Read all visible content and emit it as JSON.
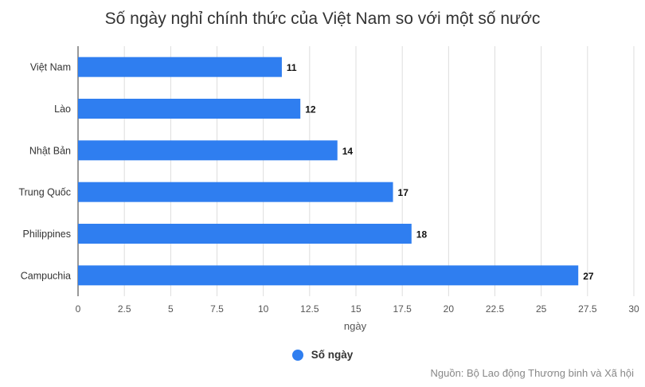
{
  "chart_data": {
    "type": "bar",
    "orientation": "horizontal",
    "title": "Số ngày nghỉ chính thức của Việt Nam so với một số nước",
    "categories": [
      "Việt Nam",
      "Lào",
      "Nhật Bản",
      "Trung Quốc",
      "Philippines",
      "Campuchia"
    ],
    "series": [
      {
        "name": "Số ngày",
        "values": [
          11,
          12,
          14,
          17,
          18,
          27
        ],
        "color": "#2f7ef0"
      }
    ],
    "xlabel": "ngày",
    "ylabel": "",
    "xlim": [
      0,
      30
    ],
    "xticks": [
      0,
      2.5,
      5,
      7.5,
      10,
      12.5,
      15,
      17.5,
      20,
      22.5,
      25,
      27.5,
      30
    ],
    "xtick_labels": [
      "0",
      "2.5",
      "5",
      "7.5",
      "10",
      "12.5",
      "15",
      "17.5",
      "20",
      "22.5",
      "25",
      "27.5",
      "30"
    ],
    "grid": true,
    "legend_position": "bottom",
    "source": "Nguồn: Bộ Lao động Thương binh và Xã hội"
  }
}
